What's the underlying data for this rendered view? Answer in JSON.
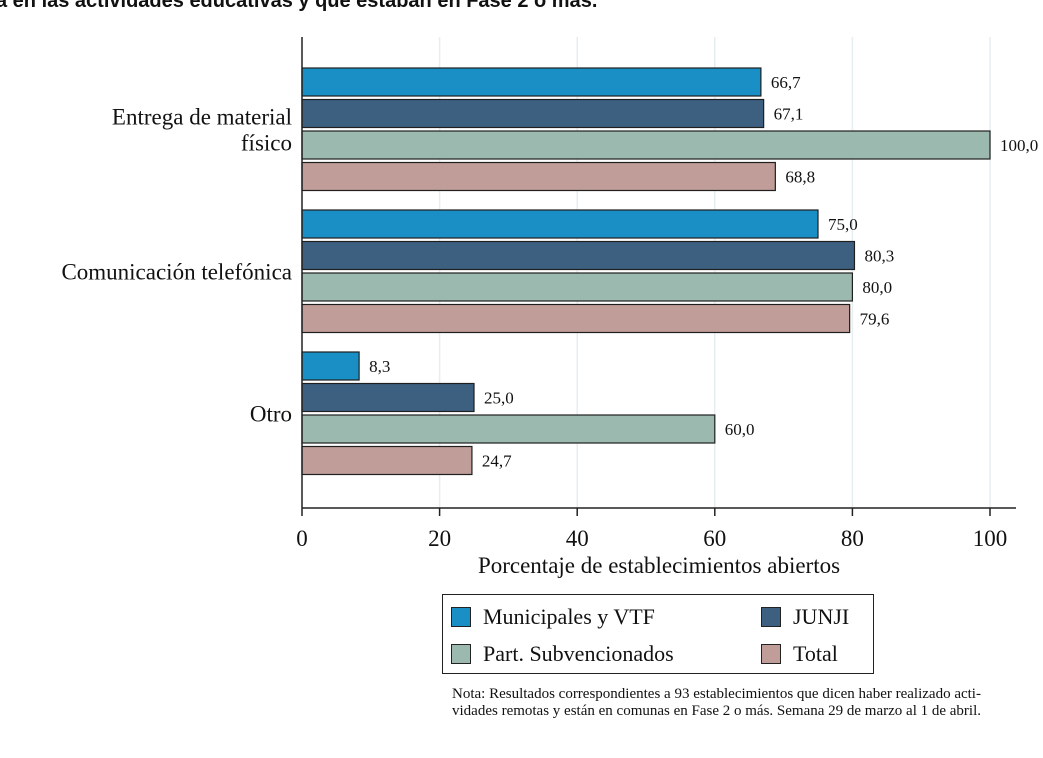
{
  "title": "a en las actividades educativas y que estaban en Fase 2 o más.",
  "chart_data": {
    "type": "bar",
    "orientation": "horizontal",
    "categories": [
      [
        "Entrega de material",
        "físico"
      ],
      [
        "Comunicación telefónica"
      ],
      [
        "Otro"
      ]
    ],
    "series": [
      {
        "name": "Municipales y VTF",
        "color": "#1a8fc6",
        "values": [
          66.7,
          75.0,
          8.3
        ],
        "labels": [
          "66,7",
          "75,0",
          "8,3"
        ]
      },
      {
        "name": "JUNJI",
        "color": "#3d6080",
        "values": [
          67.1,
          80.3,
          25.0
        ],
        "labels": [
          "67,1",
          "80,3",
          "25,0"
        ]
      },
      {
        "name": "Part. Subvencionados",
        "color": "#9cb9b0",
        "values": [
          100.0,
          80.0,
          60.0
        ],
        "labels": [
          "100,0",
          "80,0",
          "60,0"
        ]
      },
      {
        "name": "Total",
        "color": "#c09d99",
        "values": [
          68.8,
          79.6,
          24.7
        ],
        "labels": [
          "68,8",
          "79,6",
          "24,7"
        ]
      }
    ],
    "xlabel": "Porcentaje de establecimientos abiertos",
    "xlim": [
      0,
      104
    ],
    "xticks": [
      0,
      20,
      40,
      60,
      80,
      100
    ],
    "xtick_labels": [
      "0",
      "20",
      "40",
      "60",
      "80",
      "100"
    ],
    "grid": true,
    "legend_position": "bottom"
  },
  "legend": [
    {
      "label": "Municipales y VTF",
      "color": "#1a8fc6"
    },
    {
      "label": "JUNJI",
      "color": "#3d6080"
    },
    {
      "label": "Part. Subvencionados",
      "color": "#9cb9b0"
    },
    {
      "label": "Total",
      "color": "#c09d99"
    }
  ],
  "note": {
    "line1": "Nota: Resultados correspondientes a 93 establecimientos que dicen haber realizado acti-",
    "line2": "vidades remotas y están en comunas en Fase 2 o más. Semana 29 de marzo al 1 de abril."
  }
}
